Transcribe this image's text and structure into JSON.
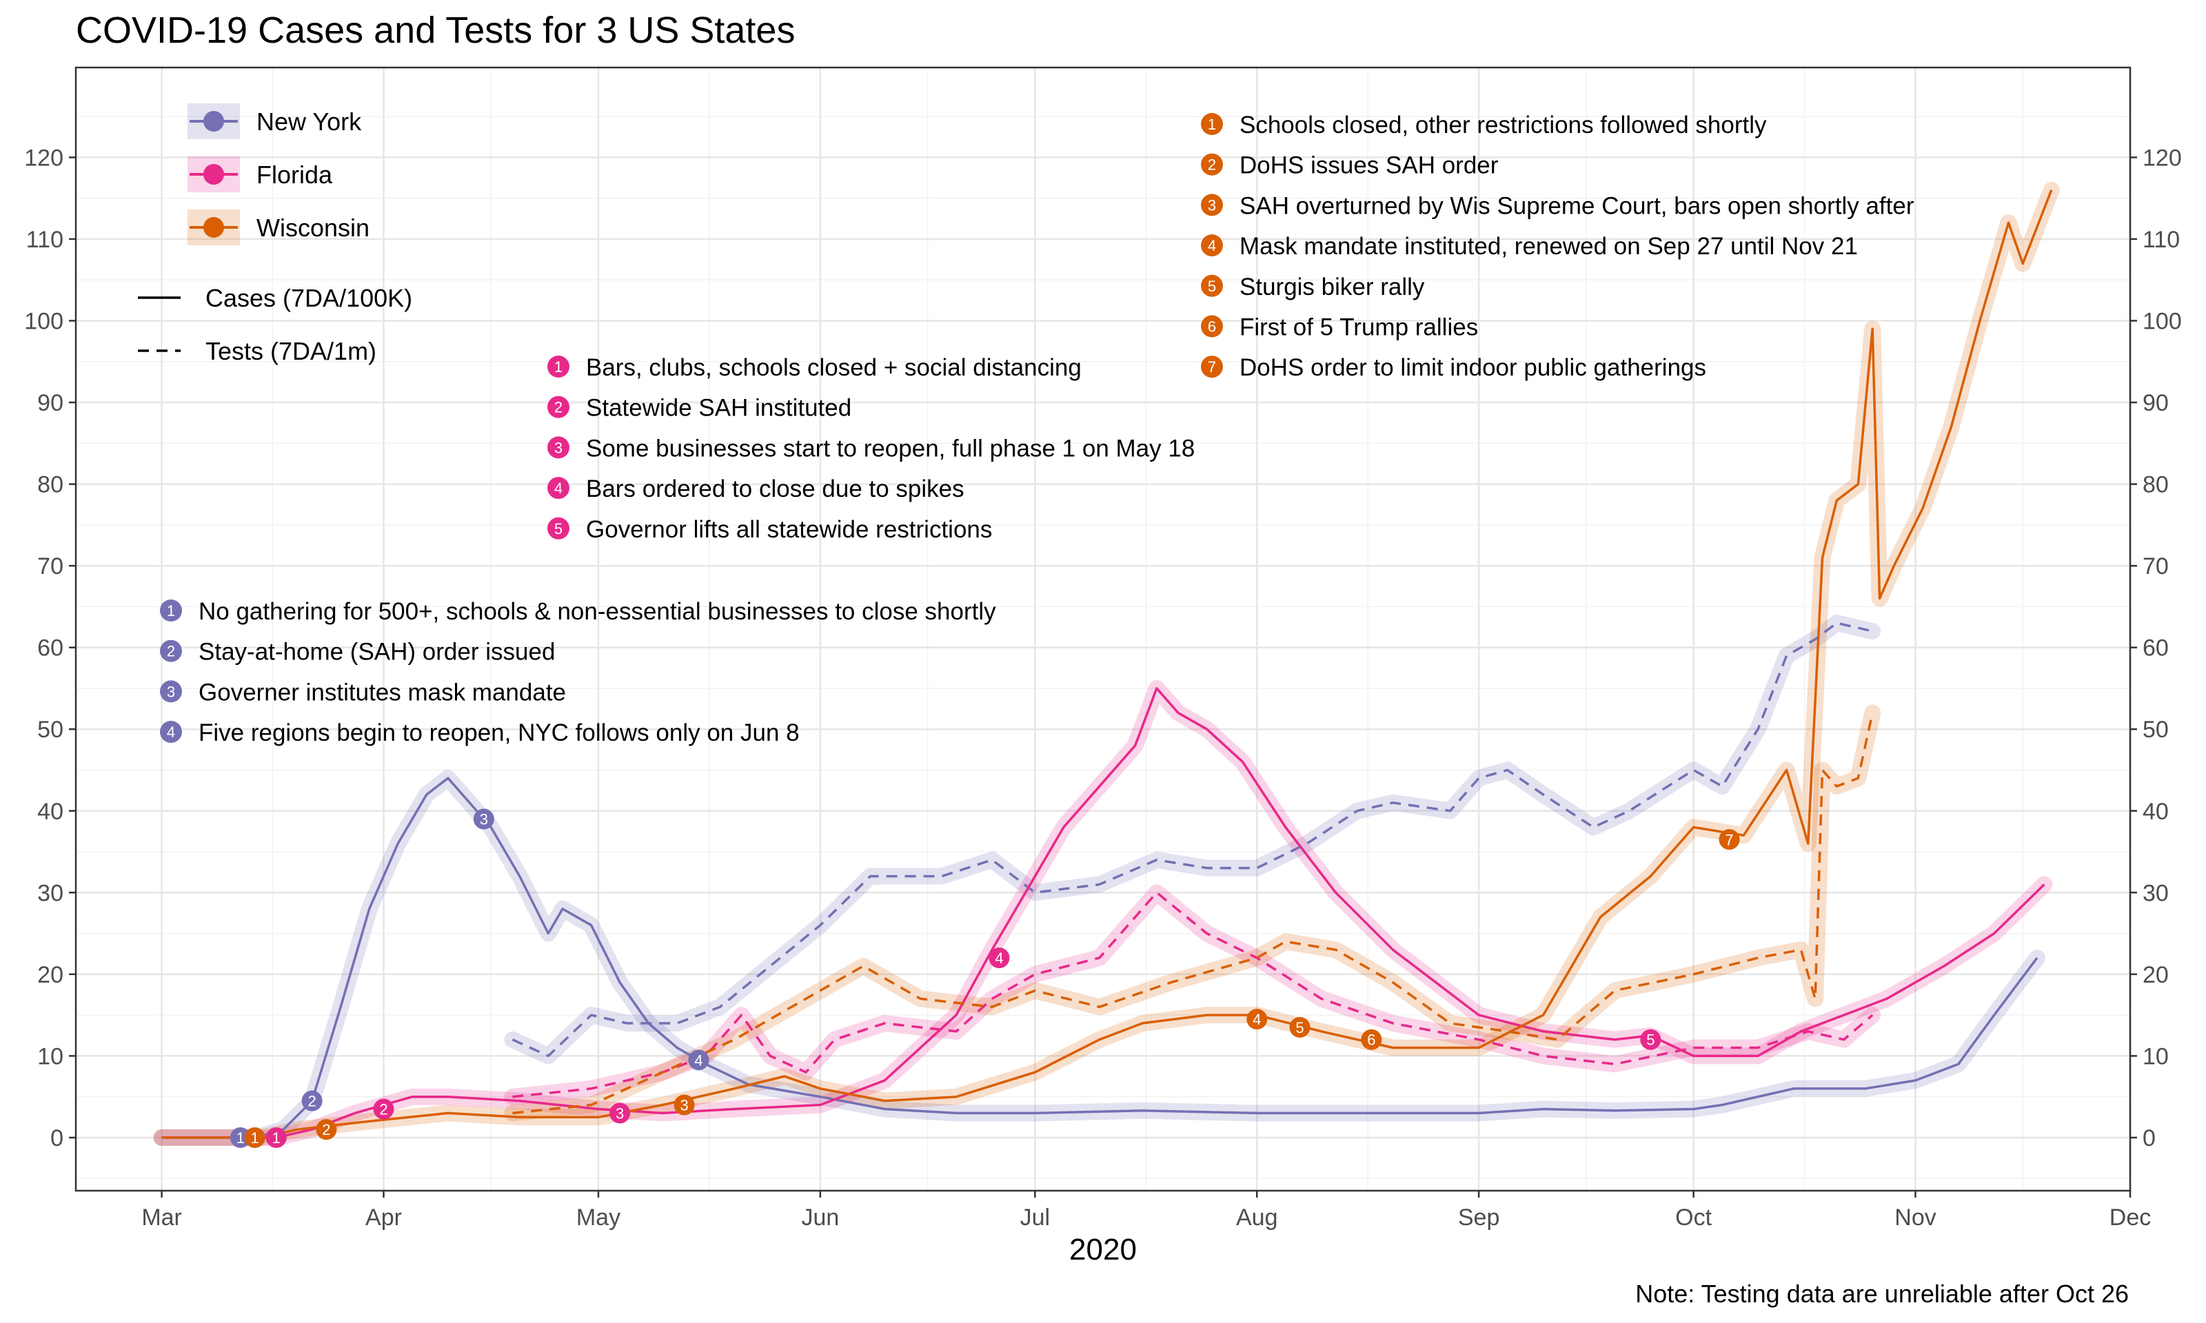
{
  "chart_data": {
    "type": "line",
    "title": "COVID-19 Cases and Tests for 3 US States",
    "xlabel": "2020",
    "note": "Note: Testing data are unreliable after Oct 26",
    "x_ticks": [
      "Mar",
      "Apr",
      "May",
      "Jun",
      "Jul",
      "Aug",
      "Sep",
      "Oct",
      "Nov",
      "Dec"
    ],
    "x_tick_dates": [
      "2020-03-01",
      "2020-04-01",
      "2020-05-01",
      "2020-06-01",
      "2020-07-01",
      "2020-08-01",
      "2020-09-01",
      "2020-10-01",
      "2020-11-01",
      "2020-12-01"
    ],
    "xlim": [
      "2020-02-18",
      "2020-12-01"
    ],
    "ylim": [
      -6.5,
      131
    ],
    "y_ticks": [
      0,
      10,
      20,
      30,
      40,
      50,
      60,
      70,
      80,
      90,
      100,
      110,
      120
    ],
    "grid": true,
    "y_axis_sides": "left and right",
    "legend_states": [
      {
        "name": "New York",
        "color": "#7570b3"
      },
      {
        "name": "Florida",
        "color": "#e7298a"
      },
      {
        "name": "Wisconsin",
        "color": "#d95f02"
      }
    ],
    "legend_linetypes": [
      {
        "label": "Cases (7DA/100K)",
        "dash": "solid"
      },
      {
        "label": "Tests (7DA/1m)",
        "dash": "dashed"
      }
    ],
    "series": [
      {
        "state": "New York",
        "metric": "cases",
        "color": "#7570b3",
        "dash": "solid",
        "x": [
          "2020-03-01",
          "2020-03-10",
          "2020-03-14",
          "2020-03-18",
          "2020-03-22",
          "2020-03-26",
          "2020-03-30",
          "2020-04-03",
          "2020-04-07",
          "2020-04-10",
          "2020-04-13",
          "2020-04-16",
          "2020-04-20",
          "2020-04-24",
          "2020-04-26",
          "2020-04-30",
          "2020-05-04",
          "2020-05-08",
          "2020-05-12",
          "2020-05-16",
          "2020-05-22",
          "2020-06-01",
          "2020-06-10",
          "2020-06-20",
          "2020-07-01",
          "2020-07-16",
          "2020-08-01",
          "2020-08-20",
          "2020-09-01",
          "2020-09-10",
          "2020-09-20",
          "2020-10-01",
          "2020-10-05",
          "2020-10-15",
          "2020-10-25",
          "2020-11-01",
          "2020-11-07",
          "2020-11-12",
          "2020-11-18"
        ],
        "y": [
          0,
          0,
          0,
          1,
          4.5,
          16,
          28,
          36,
          42,
          44,
          41,
          38,
          32,
          25,
          28,
          26,
          19,
          14,
          11,
          9,
          6.5,
          5,
          3.5,
          3,
          3,
          3.3,
          3,
          3,
          3,
          3.5,
          3.3,
          3.5,
          4,
          6,
          6,
          7,
          9,
          15,
          22
        ]
      },
      {
        "state": "New York",
        "metric": "tests",
        "color": "#7570b3",
        "dash": "dashed",
        "x": [
          "2020-04-19",
          "2020-04-24",
          "2020-04-30",
          "2020-05-05",
          "2020-05-12",
          "2020-05-18",
          "2020-05-25",
          "2020-06-01",
          "2020-06-08",
          "2020-06-18",
          "2020-06-25",
          "2020-07-01",
          "2020-07-10",
          "2020-07-18",
          "2020-07-25",
          "2020-08-01",
          "2020-08-08",
          "2020-08-15",
          "2020-08-20",
          "2020-08-28",
          "2020-09-01",
          "2020-09-05",
          "2020-09-10",
          "2020-09-17",
          "2020-09-22",
          "2020-10-01",
          "2020-10-05",
          "2020-10-10",
          "2020-10-14",
          "2020-10-18",
          "2020-10-21",
          "2020-10-26"
        ],
        "y": [
          12,
          10,
          15,
          14,
          14,
          16,
          21,
          26,
          32,
          32,
          34,
          30,
          31,
          34,
          33,
          33,
          36,
          40,
          41,
          40,
          44,
          45,
          42,
          38,
          40,
          45,
          43,
          50,
          59,
          61,
          63,
          62
        ]
      },
      {
        "state": "Florida",
        "metric": "cases",
        "color": "#e7298a",
        "dash": "solid",
        "x": [
          "2020-03-01",
          "2020-03-17",
          "2020-03-22",
          "2020-03-28",
          "2020-04-01",
          "2020-04-05",
          "2020-04-10",
          "2020-04-20",
          "2020-05-01",
          "2020-05-10",
          "2020-05-20",
          "2020-06-01",
          "2020-06-10",
          "2020-06-20",
          "2020-06-25",
          "2020-07-01",
          "2020-07-05",
          "2020-07-10",
          "2020-07-15",
          "2020-07-18",
          "2020-07-21",
          "2020-07-25",
          "2020-07-30",
          "2020-08-05",
          "2020-08-12",
          "2020-08-20",
          "2020-09-01",
          "2020-09-10",
          "2020-09-20",
          "2020-09-25",
          "2020-10-01",
          "2020-10-10",
          "2020-10-16",
          "2020-10-22",
          "2020-10-28",
          "2020-11-05",
          "2020-11-12",
          "2020-11-19"
        ],
        "y": [
          0,
          0,
          1,
          3,
          4,
          5,
          5,
          4.5,
          3.5,
          3,
          3.5,
          4,
          7,
          15,
          23,
          32,
          38,
          43,
          48,
          55,
          52,
          50,
          46,
          38,
          30,
          23,
          15,
          13,
          12,
          12.5,
          10,
          10,
          13,
          15,
          17,
          21,
          25,
          31
        ]
      },
      {
        "state": "Florida",
        "metric": "tests",
        "color": "#e7298a",
        "dash": "dashed",
        "x": [
          "2020-04-19",
          "2020-04-30",
          "2020-05-10",
          "2020-05-16",
          "2020-05-21",
          "2020-05-25",
          "2020-05-30",
          "2020-06-03",
          "2020-06-10",
          "2020-06-20",
          "2020-06-25",
          "2020-07-01",
          "2020-07-10",
          "2020-07-18",
          "2020-07-25",
          "2020-08-01",
          "2020-08-10",
          "2020-08-20",
          "2020-09-01",
          "2020-09-10",
          "2020-09-20",
          "2020-10-01",
          "2020-10-10",
          "2020-10-17",
          "2020-10-22",
          "2020-10-26"
        ],
        "y": [
          5,
          6,
          8,
          10,
          15,
          10,
          8,
          12,
          14,
          13,
          17,
          20,
          22,
          30,
          25,
          22,
          17,
          14,
          12,
          10,
          9,
          11,
          11,
          13,
          12,
          15
        ]
      },
      {
        "state": "Wisconsin",
        "metric": "cases",
        "color": "#d95f02",
        "dash": "solid",
        "x": [
          "2020-03-01",
          "2020-03-15",
          "2020-03-20",
          "2020-03-30",
          "2020-04-10",
          "2020-04-20",
          "2020-05-01",
          "2020-05-10",
          "2020-05-20",
          "2020-05-27",
          "2020-06-01",
          "2020-06-10",
          "2020-06-20",
          "2020-07-01",
          "2020-07-10",
          "2020-07-16",
          "2020-07-25",
          "2020-08-01",
          "2020-08-10",
          "2020-08-20",
          "2020-09-01",
          "2020-09-10",
          "2020-09-18",
          "2020-09-25",
          "2020-10-01",
          "2020-10-08",
          "2020-10-14",
          "2020-10-17",
          "2020-10-19",
          "2020-10-21",
          "2020-10-24",
          "2020-10-26",
          "2020-10-27",
          "2020-10-29",
          "2020-11-02",
          "2020-11-06",
          "2020-11-10",
          "2020-11-14",
          "2020-11-16",
          "2020-11-20"
        ],
        "y": [
          0,
          0,
          1,
          2,
          3,
          2.5,
          2.5,
          4,
          6,
          7.5,
          6,
          4.5,
          5,
          8,
          12,
          14,
          15,
          15,
          13,
          11,
          11,
          15,
          27,
          32,
          38,
          37,
          45,
          36,
          71,
          78,
          80,
          99,
          66,
          70,
          77,
          87,
          100,
          112,
          107,
          116
        ]
      },
      {
        "state": "Wisconsin",
        "metric": "tests",
        "color": "#d95f02",
        "dash": "dashed",
        "x": [
          "2020-04-19",
          "2020-04-30",
          "2020-05-10",
          "2020-05-20",
          "2020-05-30",
          "2020-06-07",
          "2020-06-15",
          "2020-06-25",
          "2020-07-01",
          "2020-07-10",
          "2020-07-20",
          "2020-08-01",
          "2020-08-05",
          "2020-08-12",
          "2020-08-20",
          "2020-08-28",
          "2020-09-05",
          "2020-09-12",
          "2020-09-20",
          "2020-10-01",
          "2020-10-10",
          "2020-10-16",
          "2020-10-18",
          "2020-10-19",
          "2020-10-21",
          "2020-10-24",
          "2020-10-26"
        ],
        "y": [
          3,
          4,
          8,
          12,
          17,
          21,
          17,
          16,
          18,
          16,
          19,
          22,
          24,
          23,
          19,
          14,
          13,
          12,
          18,
          20,
          22,
          23,
          17,
          45,
          43,
          44,
          52
        ]
      }
    ],
    "events": {
      "New York": [
        {
          "n": "1",
          "label": "No gathering for 500+, schools & non-essential businesses to close shortly",
          "x": "2020-03-12",
          "y": 0
        },
        {
          "n": "2",
          "label": "Stay-at-home (SAH) order issued",
          "x": "2020-03-22",
          "y": 4.5
        },
        {
          "n": "3",
          "label": "Governer institutes mask mandate",
          "x": "2020-04-15",
          "y": 39
        },
        {
          "n": "4",
          "label": "Five regions begin to reopen, NYC follows only on Jun 8",
          "x": "2020-05-15",
          "y": 9.5
        }
      ],
      "Florida": [
        {
          "n": "1",
          "label": "Bars, clubs, schools closed + social distancing",
          "x": "2020-03-17",
          "y": 0
        },
        {
          "n": "2",
          "label": "Statewide SAH instituted",
          "x": "2020-04-01",
          "y": 3.5
        },
        {
          "n": "3",
          "label": "Some businesses start to reopen, full phase 1 on May 18",
          "x": "2020-05-04",
          "y": 3
        },
        {
          "n": "4",
          "label": "Bars ordered to close due to spikes",
          "x": "2020-06-26",
          "y": 22
        },
        {
          "n": "5",
          "label": "Governor lifts all statewide restrictions",
          "x": "2020-09-25",
          "y": 12
        }
      ],
      "Wisconsin": [
        {
          "n": "1",
          "label": "Schools closed, other restrictions followed shortly",
          "x": "2020-03-14",
          "y": 0
        },
        {
          "n": "2",
          "label": "DoHS issues SAH order",
          "x": "2020-03-24",
          "y": 1
        },
        {
          "n": "3",
          "label": "SAH overturned by Wis Supreme Court, bars open shortly after",
          "x": "2020-05-13",
          "y": 4
        },
        {
          "n": "4",
          "label": "Mask mandate instituted, renewed on Sep 27 until Nov 21",
          "x": "2020-08-01",
          "y": 14.5
        },
        {
          "n": "5",
          "label": "Sturgis biker rally",
          "x": "2020-08-07",
          "y": 13.5
        },
        {
          "n": "6",
          "label": "First of 5 Trump rallies",
          "x": "2020-08-17",
          "y": 12
        },
        {
          "n": "7",
          "label": "DoHS order to limit indoor public gatherings",
          "x": "2020-10-06",
          "y": 36.5
        }
      ]
    }
  }
}
